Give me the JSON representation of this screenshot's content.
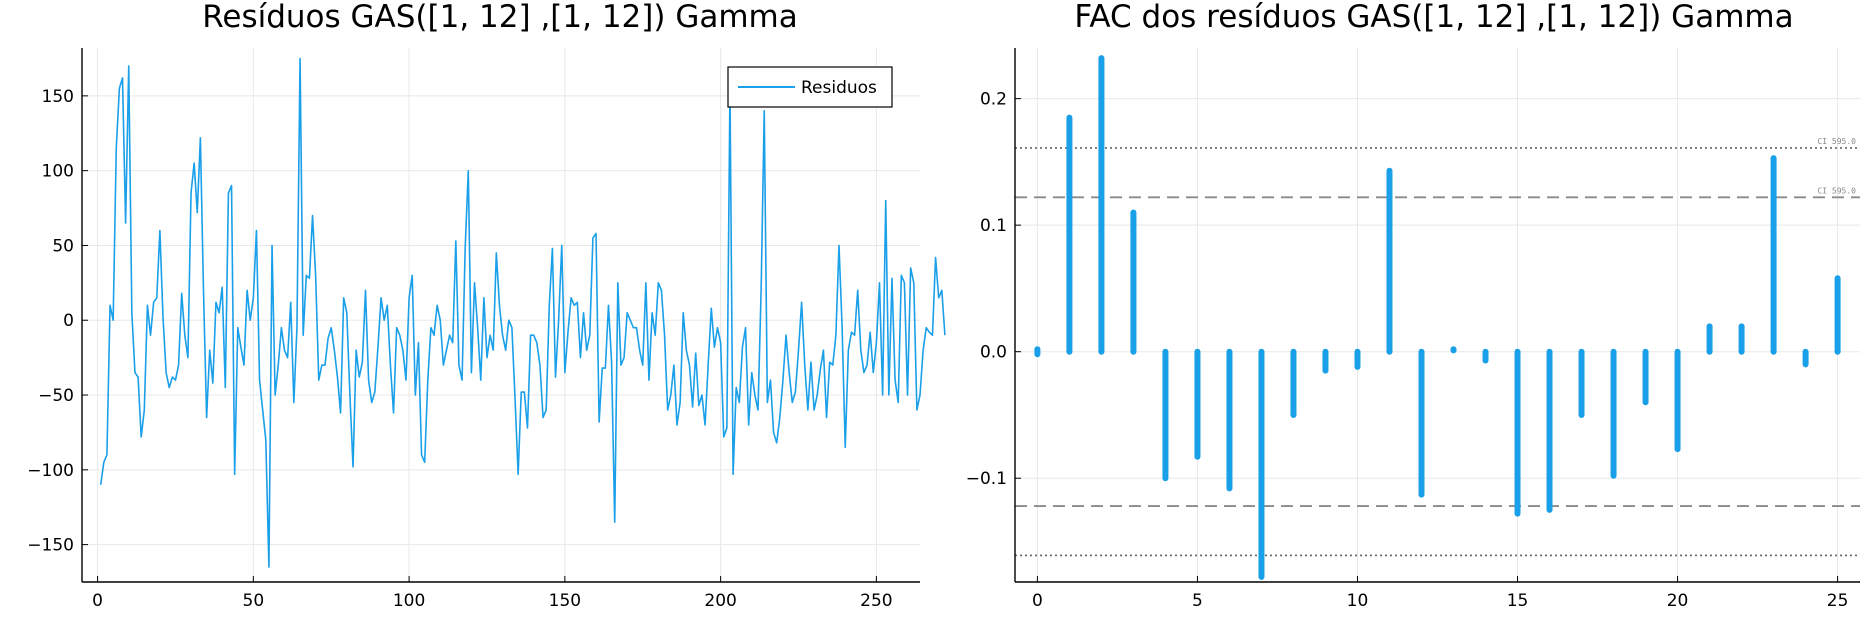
{
  "chart_data": [
    {
      "type": "line",
      "title": "Resíduos GAS([1, 12] ,[1, 12]) Gamma",
      "xlim": [
        -5,
        264
      ],
      "ylim": [
        -175,
        182
      ],
      "xticks": [
        0,
        50,
        100,
        150,
        200,
        250
      ],
      "yticks": [
        -150,
        -100,
        -50,
        0,
        50,
        100,
        150
      ],
      "xtick_labels": [
        "0",
        "50",
        "100",
        "150",
        "200",
        "250"
      ],
      "ytick_labels": [
        "−150",
        "−100",
        "−50",
        "0",
        "50",
        "100",
        "150"
      ],
      "legend_position": "top-right",
      "grid": true,
      "color": "#1a9fe9",
      "series": [
        {
          "name": "Residuos",
          "x_start": 1,
          "values": [
            -110,
            -95,
            -90,
            10,
            0,
            115,
            155,
            162,
            65,
            170,
            5,
            -35,
            -38,
            -78,
            -60,
            10,
            -10,
            12,
            15,
            60,
            2,
            -35,
            -45,
            -38,
            -40,
            -30,
            18,
            -10,
            -25,
            85,
            105,
            72,
            122,
            20,
            -65,
            -20,
            -42,
            12,
            5,
            22,
            -45,
            85,
            90,
            -103,
            -5,
            -18,
            -30,
            20,
            0,
            15,
            60,
            -40,
            -60,
            -80,
            -165,
            50,
            -50,
            -30,
            -5,
            -20,
            -25,
            12,
            -55,
            -5,
            175,
            -10,
            30,
            28,
            70,
            30,
            -40,
            -30,
            -30,
            -12,
            -5,
            -20,
            -38,
            -62,
            15,
            5,
            -50,
            -98,
            -20,
            -38,
            -28,
            20,
            -40,
            -55,
            -48,
            -18,
            15,
            0,
            10,
            -30,
            -62,
            -5,
            -10,
            -20,
            -40,
            15,
            30,
            -50,
            -15,
            -90,
            -95,
            -40,
            -5,
            -10,
            10,
            0,
            -30,
            -20,
            -10,
            -15,
            53,
            -30,
            -40,
            48,
            100,
            -35,
            25,
            -5,
            -40,
            15,
            -25,
            -10,
            -20,
            45,
            10,
            -10,
            -20,
            0,
            -5,
            -52,
            -103,
            -48,
            -48,
            -72,
            -10,
            -10,
            -15,
            -30,
            -65,
            -60,
            10,
            48,
            -38,
            0,
            50,
            -35,
            -8,
            15,
            10,
            12,
            -25,
            5,
            -20,
            -10,
            55,
            58,
            -68,
            -32,
            -32,
            10,
            -28,
            -135,
            25,
            -30,
            -25,
            5,
            0,
            -5,
            -5,
            -20,
            -30,
            25,
            -40,
            5,
            -10,
            25,
            20,
            -10,
            -60,
            -50,
            -30,
            -70,
            -55,
            5,
            -20,
            -30,
            -58,
            -22,
            -57,
            -50,
            -70,
            -30,
            8,
            -18,
            -5,
            -15,
            -78,
            -72,
            155,
            -103,
            -45,
            -55,
            -18,
            -5,
            -70,
            -35,
            -50,
            -60,
            20,
            140,
            -55,
            -40,
            -75,
            -82,
            -65,
            -40,
            -10,
            -35,
            -55,
            -48,
            -20,
            12,
            -30,
            -60,
            -28,
            -60,
            -50,
            -33,
            -20,
            -65,
            -28,
            -30,
            -10,
            50,
            -5,
            -85,
            -20,
            -8,
            -10,
            20,
            -20,
            -35,
            -30,
            -8,
            -35,
            -15,
            25,
            -50,
            80,
            -50,
            28,
            -40,
            -55,
            30,
            25,
            -50,
            35,
            25,
            -60,
            -50,
            -20,
            -5,
            -8,
            -10,
            42,
            15,
            20,
            -10
          ]
        }
      ]
    },
    {
      "type": "bar",
      "title": "FAC dos resíduos GAS([1, 12] ,[1, 12]) Gamma",
      "xlim": [
        -0.7,
        25.7
      ],
      "ylim": [
        -0.182,
        0.24
      ],
      "xticks": [
        0,
        5,
        10,
        15,
        20,
        25
      ],
      "yticks": [
        -0.1,
        0.0,
        0.1,
        0.2
      ],
      "xtick_labels": [
        "0",
        "5",
        "10",
        "15",
        "20",
        "25"
      ],
      "ytick_labels": [
        "−0.1",
        "0.0",
        "0.1",
        "0.2"
      ],
      "grid": true,
      "color": "#1a9fe9",
      "lags": [
        0,
        1,
        2,
        3,
        4,
        5,
        6,
        7,
        8,
        9,
        10,
        11,
        12,
        13,
        14,
        15,
        16,
        17,
        18,
        19,
        20,
        21,
        22,
        23,
        24,
        25
      ],
      "values": [
        0.0,
        0.185,
        0.232,
        0.11,
        -0.1,
        -0.083,
        -0.108,
        -0.178,
        -0.05,
        -0.015,
        -0.012,
        0.143,
        -0.113,
        0.003,
        -0.007,
        -0.128,
        -0.125,
        -0.05,
        -0.098,
        -0.04,
        -0.077,
        0.02,
        0.02,
        0.153,
        -0.01,
        0.058
      ],
      "ci_lines": [
        {
          "level": 0.161,
          "style": "dotted",
          "label": "CI 595.0"
        },
        {
          "level": 0.122,
          "style": "dashed",
          "label": "CI 595.0"
        },
        {
          "level": -0.122,
          "style": "dashed",
          "label": ""
        },
        {
          "level": -0.161,
          "style": "dotted",
          "label": ""
        }
      ]
    }
  ]
}
